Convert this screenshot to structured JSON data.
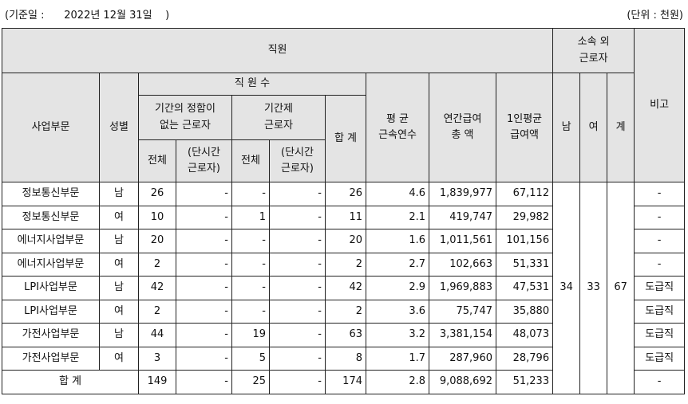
{
  "caption": {
    "base_date": "(기준일 :      2022년 12월 31일    )",
    "unit": "(단위 : 천원)"
  },
  "header": {
    "employees": "직원",
    "affiliate_outside": "소속 외\n근로자",
    "remarks": "비고",
    "division": "사업부문",
    "gender": "성별",
    "employee_count": "직 원 수",
    "indefinite_term": "기간의 정함이\n없는 근로자",
    "fixed_term": "기간제\n근로자",
    "total": "합 계",
    "avg_tenure": "평 균\n근속연수",
    "annual_pay": "연간급여\n총 액",
    "per_capita_pay": "1인평균\n급여액",
    "male": "남",
    "female": "여",
    "sum": "계",
    "all": "전체",
    "part_time": "(단시간\n근로자)"
  },
  "rows": [
    {
      "division": "정보통신부문",
      "gender": "남",
      "ind_all": "26",
      "ind_pt": "-",
      "fix_all": "-",
      "fix_pt": "-",
      "total": "26",
      "tenure": "4.6",
      "annual": "1,839,977",
      "avg": "67,112",
      "remark": "-"
    },
    {
      "division": "정보통신부문",
      "gender": "여",
      "ind_all": "10",
      "ind_pt": "-",
      "fix_all": "1",
      "fix_pt": "-",
      "total": "11",
      "tenure": "2.1",
      "annual": "419,747",
      "avg": "29,982",
      "remark": "-"
    },
    {
      "division": "에너지사업부문",
      "gender": "남",
      "ind_all": "20",
      "ind_pt": "-",
      "fix_all": "-",
      "fix_pt": "-",
      "total": "20",
      "tenure": "1.6",
      "annual": "1,011,561",
      "avg": "101,156",
      "remark": "-"
    },
    {
      "division": "에너지사업부문",
      "gender": "여",
      "ind_all": "2",
      "ind_pt": "-",
      "fix_all": "-",
      "fix_pt": "-",
      "total": "2",
      "tenure": "2.7",
      "annual": "102,663",
      "avg": "51,331",
      "remark": "-"
    },
    {
      "division": "LPI사업부문",
      "gender": "남",
      "ind_all": "42",
      "ind_pt": "-",
      "fix_all": "-",
      "fix_pt": "-",
      "total": "42",
      "tenure": "2.9",
      "annual": "1,969,883",
      "avg": "47,531",
      "remark": "도급직"
    },
    {
      "division": "LPI사업부문",
      "gender": "여",
      "ind_all": "2",
      "ind_pt": "-",
      "fix_all": "-",
      "fix_pt": "-",
      "total": "2",
      "tenure": "3.6",
      "annual": "75,747",
      "avg": "35,880",
      "remark": "도급직"
    },
    {
      "division": "가전사업부문",
      "gender": "남",
      "ind_all": "44",
      "ind_pt": "-",
      "fix_all": "19",
      "fix_pt": "-",
      "total": "63",
      "tenure": "3.2",
      "annual": "3,381,154",
      "avg": "48,073",
      "remark": "도급직"
    },
    {
      "division": "가전사업부문",
      "gender": "여",
      "ind_all": "3",
      "ind_pt": "-",
      "fix_all": "5",
      "fix_pt": "-",
      "total": "8",
      "tenure": "1.7",
      "annual": "287,960",
      "avg": "28,796",
      "remark": "도급직"
    }
  ],
  "affiliate": {
    "male": "34",
    "female": "33",
    "total": "67"
  },
  "totals": {
    "label": "합 계",
    "ind_all": "149",
    "ind_pt": "-",
    "fix_all": "25",
    "fix_pt": "-",
    "total": "174",
    "tenure": "2.8",
    "annual": "9,088,692",
    "avg": "51,233",
    "remark": "-"
  }
}
